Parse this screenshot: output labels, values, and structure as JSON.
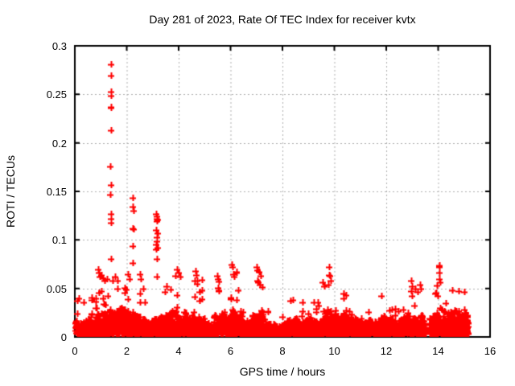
{
  "chart_data": {
    "type": "scatter",
    "title": "Day 281 of 2023, Rate Of TEC Index for receiver kvtx",
    "xlabel": "GPS time / hours",
    "ylabel": "ROTI / TECUs",
    "xlim": [
      0,
      16
    ],
    "ylim": [
      0,
      0.3
    ],
    "grid": true,
    "legend": "none",
    "marker": "plus",
    "marker_color": "#ff0000",
    "grid_color": "#b0b0b0",
    "border_color": "#000000",
    "background": "#ffffff",
    "xticks": [
      {
        "v": 0,
        "label": "0"
      },
      {
        "v": 2,
        "label": "2"
      },
      {
        "v": 4,
        "label": "4"
      },
      {
        "v": 6,
        "label": "6"
      },
      {
        "v": 8,
        "label": "8"
      },
      {
        "v": 10,
        "label": "10"
      },
      {
        "v": 12,
        "label": "12"
      },
      {
        "v": 14,
        "label": "14"
      },
      {
        "v": 16,
        "label": "16"
      }
    ],
    "yticks": [
      {
        "v": 0,
        "label": "0"
      },
      {
        "v": 0.05,
        "label": "0.05"
      },
      {
        "v": 0.1,
        "label": "0.1"
      },
      {
        "v": 0.15,
        "label": "0.15"
      },
      {
        "v": 0.2,
        "label": "0.2"
      },
      {
        "v": 0.25,
        "label": "0.25"
      },
      {
        "v": 0.3,
        "label": "0.3"
      }
    ],
    "outliers": [
      [
        1.4,
        0.281
      ],
      [
        1.4,
        0.269
      ],
      [
        1.385,
        0.253
      ],
      [
        1.4,
        0.249
      ],
      [
        1.39,
        0.237
      ],
      [
        1.41,
        0.236
      ],
      [
        1.4,
        0.213
      ],
      [
        1.375,
        0.176
      ],
      [
        1.38,
        0.157
      ],
      [
        1.375,
        0.147
      ],
      [
        1.39,
        0.127
      ],
      [
        1.38,
        0.122
      ],
      [
        1.395,
        0.118
      ],
      [
        1.4,
        0.08
      ],
      [
        2.24,
        0.143
      ],
      [
        2.23,
        0.134
      ],
      [
        2.25,
        0.13
      ],
      [
        2.23,
        0.112
      ],
      [
        2.25,
        0.111
      ],
      [
        2.235,
        0.094
      ],
      [
        2.22,
        0.076
      ],
      [
        3.14,
        0.127
      ],
      [
        3.17,
        0.124
      ],
      [
        3.15,
        0.122
      ],
      [
        3.19,
        0.121
      ],
      [
        3.16,
        0.119
      ],
      [
        3.13,
        0.11
      ],
      [
        3.18,
        0.107
      ],
      [
        3.15,
        0.103
      ],
      [
        3.17,
        0.099
      ],
      [
        3.14,
        0.095
      ],
      [
        3.19,
        0.092
      ],
      [
        3.12,
        0.09
      ],
      [
        3.16,
        0.08
      ],
      [
        3.15,
        0.062
      ]
    ],
    "peaks": [
      [
        0.15,
        0.04
      ],
      [
        0.35,
        0.036
      ],
      [
        0.9,
        0.07
      ],
      [
        0.93,
        0.066
      ],
      [
        0.96,
        0.062
      ],
      [
        1.15,
        0.058
      ],
      [
        1.25,
        0.06
      ],
      [
        1.45,
        0.058
      ],
      [
        1.55,
        0.062
      ],
      [
        1.65,
        0.058
      ],
      [
        2.05,
        0.065
      ],
      [
        2.1,
        0.06
      ],
      [
        2.5,
        0.065
      ],
      [
        2.55,
        0.06
      ],
      [
        3.55,
        0.052
      ],
      [
        3.95,
        0.07
      ],
      [
        4.0,
        0.066
      ],
      [
        4.05,
        0.062
      ],
      [
        4.65,
        0.068
      ],
      [
        4.68,
        0.064
      ],
      [
        4.7,
        0.058
      ],
      [
        4.72,
        0.055
      ],
      [
        5.5,
        0.063
      ],
      [
        5.52,
        0.06
      ],
      [
        5.55,
        0.057
      ],
      [
        6.05,
        0.075
      ],
      [
        6.08,
        0.072
      ],
      [
        6.12,
        0.065
      ],
      [
        6.15,
        0.062
      ],
      [
        6.3,
        0.048
      ],
      [
        7.0,
        0.072
      ],
      [
        7.05,
        0.069
      ],
      [
        7.1,
        0.067
      ],
      [
        7.15,
        0.063
      ],
      [
        7.05,
        0.058
      ],
      [
        7.08,
        0.056
      ],
      [
        7.12,
        0.054
      ],
      [
        8.3,
        0.037
      ],
      [
        9.55,
        0.056
      ],
      [
        9.6,
        0.052
      ],
      [
        9.8,
        0.072
      ],
      [
        9.82,
        0.063
      ],
      [
        9.85,
        0.058
      ],
      [
        9.78,
        0.054
      ],
      [
        10.35,
        0.045
      ],
      [
        10.45,
        0.043
      ],
      [
        11.8,
        0.042
      ],
      [
        12.95,
        0.058
      ],
      [
        12.98,
        0.052
      ],
      [
        13.3,
        0.054
      ],
      [
        13.32,
        0.05
      ],
      [
        14.05,
        0.074
      ],
      [
        14.04,
        0.072
      ],
      [
        14.06,
        0.066
      ],
      [
        14.05,
        0.06
      ],
      [
        14.08,
        0.056
      ],
      [
        14.55,
        0.048
      ],
      [
        14.8,
        0.047
      ],
      [
        15.0,
        0.046
      ]
    ],
    "baseline": {
      "comment": "dense low-value band of ROTI points; segments = [startHour, endHour, typicalBandTop, occasionalSpikeTop]",
      "ymin": 0.003,
      "step": 0.0125,
      "seed": 2023281,
      "segments": [
        [
          0.03,
          0.5,
          0.02,
          0.04
        ],
        [
          0.5,
          0.85,
          0.026,
          0.042
        ],
        [
          0.85,
          1.05,
          0.032,
          0.068
        ],
        [
          1.05,
          1.55,
          0.038,
          0.062
        ],
        [
          1.55,
          2.1,
          0.032,
          0.06
        ],
        [
          2.1,
          2.45,
          0.028,
          0.058
        ],
        [
          2.45,
          2.75,
          0.026,
          0.052
        ],
        [
          2.75,
          3.0,
          0.02,
          0.036
        ],
        [
          3.0,
          3.3,
          0.026,
          0.05
        ],
        [
          3.3,
          3.75,
          0.028,
          0.052
        ],
        [
          3.75,
          4.3,
          0.03,
          0.065
        ],
        [
          4.3,
          5.0,
          0.026,
          0.062
        ],
        [
          5.0,
          5.35,
          0.018,
          0.032
        ],
        [
          5.35,
          5.8,
          0.026,
          0.058
        ],
        [
          5.8,
          6.5,
          0.03,
          0.068
        ],
        [
          6.5,
          6.9,
          0.022,
          0.038
        ],
        [
          6.9,
          7.35,
          0.03,
          0.065
        ],
        [
          7.35,
          8.2,
          0.016,
          0.03
        ],
        [
          8.2,
          8.55,
          0.024,
          0.038
        ],
        [
          8.55,
          9.5,
          0.02,
          0.036
        ],
        [
          9.5,
          10.05,
          0.032,
          0.065
        ],
        [
          10.05,
          10.8,
          0.03,
          0.045
        ],
        [
          10.8,
          11.6,
          0.02,
          0.036
        ],
        [
          11.6,
          12.1,
          0.024,
          0.042
        ],
        [
          12.1,
          12.7,
          0.022,
          0.03
        ],
        [
          12.7,
          13.1,
          0.028,
          0.052
        ],
        [
          13.1,
          13.52,
          0.026,
          0.05
        ],
        [
          13.66,
          13.95,
          0.026,
          0.046
        ],
        [
          13.95,
          14.25,
          0.034,
          0.06
        ],
        [
          14.25,
          15.18,
          0.032,
          0.046
        ]
      ]
    }
  }
}
